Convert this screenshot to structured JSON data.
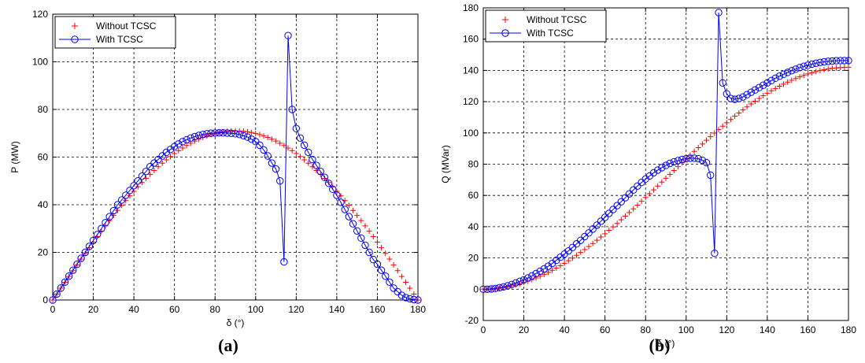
{
  "chart_data": [
    {
      "type": "line",
      "caption": "(a)",
      "xlabel": "δ (°)",
      "ylabel": "P  (MW)",
      "xlim": [
        0,
        180
      ],
      "ylim": [
        0,
        120
      ],
      "xticks": [
        0,
        20,
        40,
        60,
        80,
        100,
        120,
        140,
        160,
        180
      ],
      "yticks": [
        0,
        20,
        40,
        60,
        80,
        100,
        120
      ],
      "grid": true,
      "legend_position": "top-left",
      "series": [
        {
          "name": "Without TCSC",
          "color": "#ff0000",
          "marker": "plus",
          "shape": "sine",
          "amplitude": 71,
          "x_start": 0,
          "x_end": 180,
          "x_step": 2
        },
        {
          "name": "With TCSC",
          "color": "#0000ff",
          "marker": "circle",
          "x": [
            0,
            2,
            4,
            6,
            8,
            10,
            12,
            14,
            16,
            18,
            20,
            22,
            24,
            26,
            28,
            30,
            32,
            34,
            36,
            38,
            40,
            42,
            44,
            46,
            48,
            50,
            52,
            54,
            56,
            58,
            60,
            62,
            64,
            66,
            68,
            70,
            72,
            74,
            76,
            78,
            80,
            82,
            84,
            86,
            88,
            90,
            92,
            94,
            96,
            98,
            100,
            102,
            104,
            106,
            108,
            110,
            112,
            114,
            116,
            118,
            120,
            122,
            124,
            126,
            128,
            130,
            132,
            134,
            136,
            138,
            140,
            142,
            144,
            146,
            148,
            150,
            152,
            154,
            156,
            158,
            160,
            162,
            164,
            166,
            168,
            170,
            172,
            174,
            176,
            178,
            180
          ],
          "y": [
            0,
            2.5,
            5,
            7.5,
            10,
            12.5,
            15,
            17.5,
            20,
            22.5,
            25,
            27.5,
            30,
            32.5,
            35,
            37.5,
            40,
            42,
            44,
            46,
            48,
            50,
            52,
            54,
            56,
            57.5,
            59,
            60.5,
            62,
            63.2,
            64.4,
            65.5,
            66.5,
            67.3,
            68,
            68.6,
            69.1,
            69.5,
            69.8,
            70,
            70.1,
            70.2,
            70.2,
            70.1,
            70,
            69.8,
            69.5,
            69,
            68.4,
            67.5,
            66.5,
            65,
            63,
            60.5,
            57.5,
            55,
            50,
            16,
            111,
            80,
            72,
            68,
            65,
            62,
            59,
            56.5,
            54,
            51.5,
            49,
            46.5,
            44,
            41,
            38,
            35,
            32,
            29,
            26,
            23,
            20,
            17,
            15,
            12.5,
            10,
            7.5,
            5,
            3.5,
            2,
            1,
            0.5,
            0.2,
            0
          ]
        }
      ]
    },
    {
      "type": "line",
      "caption": "(b)",
      "xlabel": "δ (°)",
      "ylabel": "Q  (MVar)",
      "xlim": [
        0,
        180
      ],
      "ylim": [
        -20,
        180
      ],
      "xticks": [
        0,
        20,
        40,
        60,
        80,
        100,
        120,
        140,
        160,
        180
      ],
      "yticks": [
        -20,
        0,
        20,
        40,
        60,
        80,
        100,
        120,
        140,
        160,
        180
      ],
      "grid": true,
      "legend_position": "top-left",
      "series": [
        {
          "name": "Without TCSC",
          "color": "#ff0000",
          "marker": "plus",
          "shape": "one-minus-cos",
          "amplitude": 71,
          "x_start": 0,
          "x_end": 180,
          "x_step": 2
        },
        {
          "name": "With TCSC",
          "color": "#0000ff",
          "marker": "circle",
          "x": [
            0,
            2,
            4,
            6,
            8,
            10,
            12,
            14,
            16,
            18,
            20,
            22,
            24,
            26,
            28,
            30,
            32,
            34,
            36,
            38,
            40,
            42,
            44,
            46,
            48,
            50,
            52,
            54,
            56,
            58,
            60,
            62,
            64,
            66,
            68,
            70,
            72,
            74,
            76,
            78,
            80,
            82,
            84,
            86,
            88,
            90,
            92,
            94,
            96,
            98,
            100,
            102,
            104,
            106,
            108,
            110,
            112,
            114,
            116,
            118,
            120,
            122,
            124,
            126,
            128,
            130,
            132,
            134,
            136,
            138,
            140,
            142,
            144,
            146,
            148,
            150,
            152,
            154,
            156,
            158,
            160,
            162,
            164,
            166,
            168,
            170,
            172,
            174,
            176,
            178,
            180
          ],
          "y": [
            0,
            0,
            0.2,
            0.5,
            1,
            1.5,
            2.2,
            3,
            4,
            5,
            6,
            7.2,
            8.5,
            10,
            11.5,
            13,
            14.7,
            16.5,
            18.5,
            20.5,
            22.5,
            24.5,
            26.7,
            29,
            31.3,
            33.7,
            36,
            38.5,
            41,
            43.5,
            46,
            48.5,
            51,
            53.5,
            56,
            58.5,
            61,
            63.5,
            66,
            68.3,
            70.5,
            72.5,
            74.5,
            76.2,
            77.8,
            79.2,
            80.5,
            81.5,
            82.3,
            83,
            83.5,
            83.8,
            83.8,
            83.5,
            82.5,
            81,
            73,
            23,
            177,
            132,
            125,
            122,
            121.5,
            122,
            123,
            124.5,
            126,
            127.5,
            129,
            130.5,
            132,
            133.5,
            135,
            136.3,
            137.5,
            138.7,
            139.8,
            140.8,
            141.8,
            142.6,
            143.3,
            144,
            144.6,
            145.1,
            145.5,
            145.8,
            146,
            146.2,
            146.3,
            146.3,
            146.3
          ]
        }
      ]
    }
  ]
}
